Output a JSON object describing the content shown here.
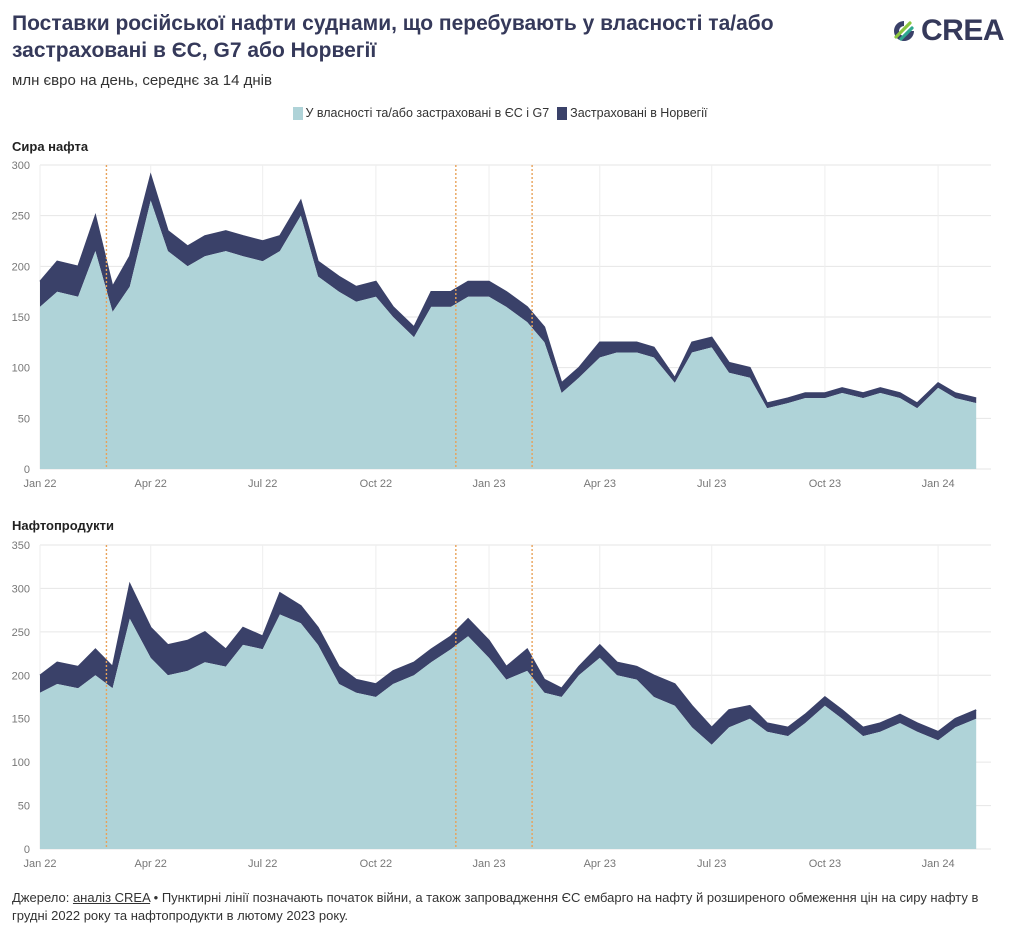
{
  "header": {
    "title": "Поставки російської нафти суднами, що перебувають у власності та/або застраховані в ЄС, G7 або Норвегії",
    "subtitle": "млн євро на день, середнє за 14 днів",
    "logo_text": "CREA"
  },
  "legend": {
    "items": [
      {
        "label": "У власності та/або застраховані в ЄС і G7",
        "color": "#afd3d8"
      },
      {
        "label": "Застраховані в Норвегії",
        "color": "#3a4169"
      }
    ]
  },
  "footer": {
    "source_prefix": "Джерело: ",
    "source_link": "аналіз CREA",
    "note": " • Пунктирні лінії позначають початок війни, а також запровадження ЄС ембарго на нафту й розширеного обмеження цін на сиру нафту в грудні 2022 року та нафтопродукти в лютому 2023 року."
  },
  "colors": {
    "eu_g7": "#afd3d8",
    "norway": "#3a4169",
    "event_line": "#e8a25a"
  },
  "chart_data": [
    {
      "type": "area",
      "title": "Сира нафта",
      "stacked": true,
      "x_ticks": [
        "Jan 22",
        "Apr 22",
        "Jul 22",
        "Oct 22",
        "Jan 23",
        "Apr 23",
        "Jul 23",
        "Oct 23",
        "Jan 24"
      ],
      "y_ticks": [
        0,
        50,
        100,
        150,
        200,
        250,
        300
      ],
      "ylim": [
        0,
        300
      ],
      "event_lines": [
        "2022-02-24",
        "2022-12-05",
        "2023-02-05"
      ],
      "x": [
        "2022-01-01",
        "2022-01-15",
        "2022-02-01",
        "2022-02-15",
        "2022-03-01",
        "2022-03-15",
        "2022-04-01",
        "2022-04-15",
        "2022-05-01",
        "2022-05-15",
        "2022-06-01",
        "2022-06-15",
        "2022-07-01",
        "2022-07-15",
        "2022-08-01",
        "2022-08-15",
        "2022-09-01",
        "2022-09-15",
        "2022-10-01",
        "2022-10-15",
        "2022-11-01",
        "2022-11-15",
        "2022-12-01",
        "2022-12-15",
        "2023-01-01",
        "2023-01-15",
        "2023-02-01",
        "2023-02-15",
        "2023-03-01",
        "2023-03-15",
        "2023-04-01",
        "2023-04-15",
        "2023-05-01",
        "2023-05-15",
        "2023-06-01",
        "2023-06-15",
        "2023-07-01",
        "2023-07-15",
        "2023-08-01",
        "2023-08-15",
        "2023-09-01",
        "2023-09-15",
        "2023-10-01",
        "2023-10-15",
        "2023-11-01",
        "2023-11-15",
        "2023-12-01",
        "2023-12-15",
        "2024-01-01",
        "2024-01-15",
        "2024-02-01"
      ],
      "grid": true,
      "series": [
        {
          "name": "У власності та/або застраховані в ЄС і G7",
          "values": [
            160,
            175,
            170,
            215,
            155,
            180,
            265,
            215,
            200,
            210,
            215,
            210,
            205,
            215,
            250,
            190,
            175,
            165,
            170,
            150,
            130,
            160,
            160,
            170,
            170,
            160,
            145,
            125,
            75,
            90,
            110,
            115,
            115,
            110,
            85,
            115,
            120,
            95,
            90,
            60,
            65,
            70,
            70,
            75,
            70,
            75,
            70,
            60,
            80,
            70,
            65
          ]
        },
        {
          "name": "Застраховані в Норвегії",
          "values": [
            25,
            30,
            30,
            35,
            25,
            30,
            25,
            20,
            20,
            20,
            20,
            20,
            20,
            15,
            15,
            15,
            15,
            15,
            15,
            10,
            10,
            15,
            15,
            15,
            15,
            15,
            15,
            15,
            10,
            10,
            15,
            10,
            10,
            10,
            5,
            10,
            10,
            10,
            10,
            5,
            5,
            5,
            5,
            5,
            5,
            5,
            5,
            5,
            5,
            5,
            5
          ]
        }
      ]
    },
    {
      "type": "area",
      "title": "Нафтопродукти",
      "stacked": true,
      "x_ticks": [
        "Jan 22",
        "Apr 22",
        "Jul 22",
        "Oct 22",
        "Jan 23",
        "Apr 23",
        "Jul 23",
        "Oct 23",
        "Jan 24"
      ],
      "y_ticks": [
        0,
        50,
        100,
        150,
        200,
        250,
        300,
        350
      ],
      "ylim": [
        0,
        350
      ],
      "event_lines": [
        "2022-02-24",
        "2022-12-05",
        "2023-02-05"
      ],
      "x": [
        "2022-01-01",
        "2022-01-15",
        "2022-02-01",
        "2022-02-15",
        "2022-03-01",
        "2022-03-15",
        "2022-04-01",
        "2022-04-15",
        "2022-05-01",
        "2022-05-15",
        "2022-06-01",
        "2022-06-15",
        "2022-07-01",
        "2022-07-15",
        "2022-08-01",
        "2022-08-15",
        "2022-09-01",
        "2022-09-15",
        "2022-10-01",
        "2022-10-15",
        "2022-11-01",
        "2022-11-15",
        "2022-12-01",
        "2022-12-15",
        "2023-01-01",
        "2023-01-15",
        "2023-02-01",
        "2023-02-15",
        "2023-03-01",
        "2023-03-15",
        "2023-04-01",
        "2023-04-15",
        "2023-05-01",
        "2023-05-15",
        "2023-06-01",
        "2023-06-15",
        "2023-07-01",
        "2023-07-15",
        "2023-08-01",
        "2023-08-15",
        "2023-09-01",
        "2023-09-15",
        "2023-10-01",
        "2023-10-15",
        "2023-11-01",
        "2023-11-15",
        "2023-12-01",
        "2023-12-15",
        "2024-01-01",
        "2024-01-15",
        "2024-02-01"
      ],
      "grid": true,
      "series": [
        {
          "name": "У власності та/або застраховані в ЄС і G7",
          "values": [
            180,
            190,
            185,
            200,
            185,
            265,
            220,
            200,
            205,
            215,
            210,
            235,
            230,
            270,
            260,
            235,
            190,
            180,
            175,
            190,
            200,
            215,
            230,
            245,
            220,
            195,
            205,
            180,
            175,
            200,
            220,
            200,
            195,
            175,
            165,
            140,
            120,
            140,
            150,
            135,
            130,
            145,
            165,
            150,
            130,
            135,
            145,
            135,
            125,
            140,
            150
          ]
        },
        {
          "name": "Застраховані в Норвегії",
          "values": [
            20,
            25,
            25,
            30,
            25,
            40,
            35,
            35,
            35,
            35,
            20,
            20,
            15,
            25,
            20,
            20,
            20,
            15,
            15,
            15,
            15,
            15,
            15,
            20,
            20,
            15,
            25,
            15,
            10,
            10,
            15,
            15,
            15,
            25,
            25,
            25,
            20,
            20,
            15,
            10,
            10,
            10,
            10,
            10,
            10,
            10,
            10,
            10,
            10,
            10,
            10
          ]
        }
      ]
    }
  ]
}
